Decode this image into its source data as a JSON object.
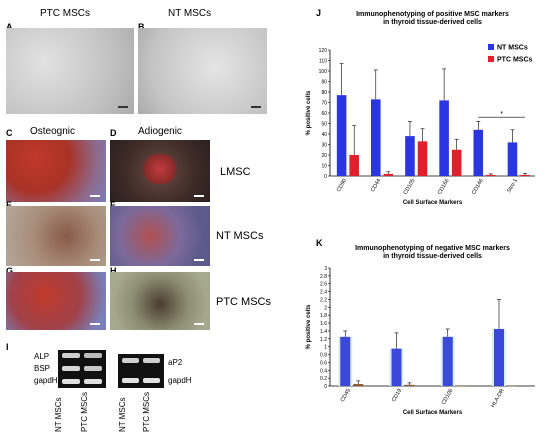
{
  "panels": {
    "A": {
      "letter": "A",
      "title": "PTC MSCs"
    },
    "B": {
      "letter": "B",
      "title": "NT MSCs"
    },
    "C": {
      "letter": "C",
      "title": "Osteognic"
    },
    "D": {
      "letter": "D",
      "title": "Adiogenic"
    },
    "E": {
      "letter": "E"
    },
    "F": {
      "letter": "F"
    },
    "G": {
      "letter": "G"
    },
    "H": {
      "letter": "H"
    },
    "I": {
      "letter": "I"
    },
    "J": {
      "letter": "J"
    },
    "K": {
      "letter": "K"
    }
  },
  "row_labels": [
    "LMSC",
    "NT MSCs",
    "PTC MSCs"
  ],
  "gel": {
    "left_genes": [
      "ALP",
      "BSP",
      "gapdH"
    ],
    "right_genes": [
      "aP2",
      "gapdH"
    ],
    "lanes": [
      "NT MSCs",
      "PTC MSCs"
    ]
  },
  "colors": {
    "nt": "#2b35e0",
    "ptc": "#e0202c",
    "neg_nt": "#3c49d8",
    "neg_ptc": "#8b5a2b",
    "halo": "#d6f0f7"
  },
  "chart_data": [
    {
      "type": "bar",
      "title": "Immunophenotyping of positive MSC markers\nin thyroid tissue-derived cells",
      "xlabel": "Cell Surface Markers",
      "ylabel": "% positive cells",
      "categories": [
        "CD90",
        "CD44",
        "CD105",
        "CD166",
        "CD146",
        "Stro-1"
      ],
      "ylim": [
        0,
        120
      ],
      "yticks": [
        0,
        10,
        20,
        30,
        40,
        50,
        60,
        70,
        80,
        90,
        100,
        110,
        120
      ],
      "series": [
        {
          "name": "NT MSCs",
          "values": [
            77,
            73,
            38,
            72,
            44,
            32
          ],
          "errors": [
            30,
            28,
            14,
            30,
            8,
            12
          ]
        },
        {
          "name": "PTC MSCs",
          "values": [
            20,
            2,
            33,
            25,
            1,
            1
          ],
          "errors": [
            28,
            2,
            12,
            10,
            1,
            1.5
          ]
        }
      ],
      "legend": "top-right",
      "annotation": "*"
    },
    {
      "type": "bar",
      "title": "Immunophenotyping of negative MSC markers\nin thyroid tissue-derived cells",
      "xlabel": "Cell Surface Markers",
      "ylabel": "% positive cells",
      "categories": [
        "CD45",
        "CD19",
        "CD106",
        "HLA-DR"
      ],
      "ylim": [
        0,
        3
      ],
      "yticks": [
        0,
        0.2,
        0.4,
        0.6,
        0.8,
        1,
        1.2,
        1.4,
        1.6,
        1.8,
        2,
        2.2,
        2.4,
        2.6,
        2.8,
        3
      ],
      "series": [
        {
          "name": "NT MSCs",
          "values": [
            1.25,
            0.95,
            1.25,
            1.45
          ],
          "errors": [
            0.15,
            0.4,
            0.2,
            0.75
          ]
        },
        {
          "name": "PTC MSCs",
          "values": [
            0.05,
            0.03,
            0,
            0
          ],
          "errors": [
            0.08,
            0.05,
            0,
            0
          ]
        }
      ]
    }
  ]
}
